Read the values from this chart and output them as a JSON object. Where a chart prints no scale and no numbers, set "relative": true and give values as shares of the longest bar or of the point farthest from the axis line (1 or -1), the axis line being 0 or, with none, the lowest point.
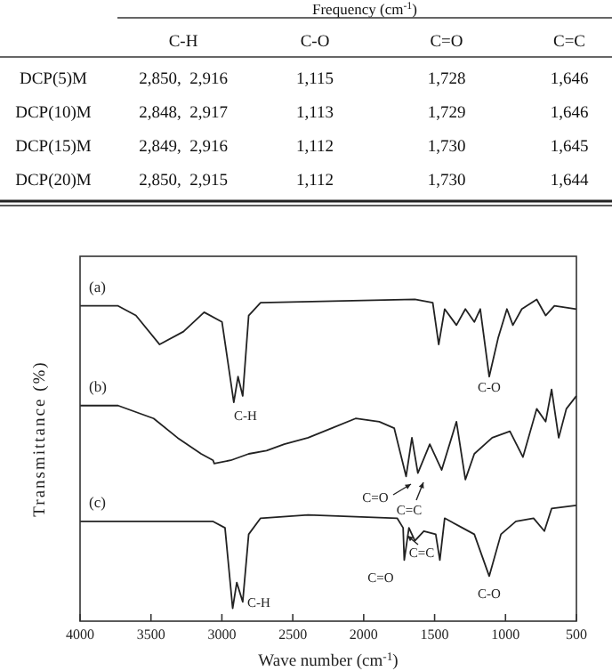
{
  "chart_data": [
    {
      "type": "other",
      "title": "Frequency (cm$^{-1}$)",
      "categories": [
        "C-H",
        "C-O",
        "C=O",
        "C=C"
      ],
      "y_categories": [
        "DCP(5)M",
        "DCP(10)M",
        "DCP(15)M",
        "DCP(20)M"
      ],
      "cell_labels": [
        [
          "2,850,  2,916",
          "1,115",
          "1,728",
          "1,646"
        ],
        [
          "2,848,  2,917",
          "1,113",
          "1,729",
          "1,646"
        ],
        [
          "2,849,  2,916",
          "1,112",
          "1,730",
          "1,645"
        ],
        [
          "2,850,  2,915",
          "1,112",
          "1,730",
          "1,644"
        ]
      ]
    },
    {
      "type": "line",
      "relative": true,
      "xlabel": "Wave number (cm$^{-1}$)",
      "ylabel": "Transmittance (%)",
      "xlim": [
        4000,
        500
      ],
      "xticks": [
        4000,
        3500,
        3000,
        2500,
        2000,
        1500,
        1000,
        500
      ],
      "marker": "none",
      "line_style": "solid",
      "series": [
        {
          "name": "(a)",
          "color": "#222222",
          "x": [
            4000,
            3732,
            3606,
            3439,
            3271,
            3125,
            2999,
            2916,
            2886,
            2853,
            2811,
            2727,
            1639,
            1513,
            1471,
            1429,
            1346,
            1283,
            1220,
            1178,
            1115,
            1052,
            990,
            948,
            885,
            780,
            717,
            655,
            500
          ],
          "values": [
            0.98,
            0.98,
            0.95,
            0.86,
            0.9,
            0.96,
            0.93,
            0.68,
            0.76,
            0.7,
            0.95,
            0.99,
            1.0,
            0.99,
            0.86,
            0.97,
            0.92,
            0.97,
            0.93,
            0.97,
            0.76,
            0.88,
            0.97,
            0.92,
            0.97,
            1.0,
            0.95,
            0.98,
            0.97
          ]
        },
        {
          "name": "(b)",
          "color": "#222222",
          "x": [
            4000,
            3732,
            3481,
            3313,
            3146,
            3062,
            3054,
            2937,
            2811,
            2685,
            2560,
            2392,
            2225,
            2057,
            1890,
            1785,
            1701,
            1660,
            1618,
            1534,
            1450,
            1346,
            1283,
            1220,
            1094,
            969,
            877,
            780,
            717,
            675,
            625,
            571,
            500
          ],
          "values": [
            0.67,
            0.67,
            0.63,
            0.57,
            0.52,
            0.5,
            0.49,
            0.5,
            0.52,
            0.53,
            0.55,
            0.57,
            0.6,
            0.63,
            0.62,
            0.6,
            0.45,
            0.57,
            0.46,
            0.55,
            0.47,
            0.62,
            0.44,
            0.52,
            0.57,
            0.59,
            0.51,
            0.66,
            0.62,
            0.72,
            0.57,
            0.66,
            0.7
          ]
        },
        {
          "name": "(c)",
          "color": "#222222",
          "x": [
            4000,
            3062,
            2978,
            2924,
            2895,
            2853,
            2811,
            2727,
            2392,
            1764,
            1722,
            1714,
            1681,
            1639,
            1576,
            1492,
            1463,
            1429,
            1304,
            1220,
            1115,
            1032,
            927,
            802,
            726,
            675,
            500
          ],
          "values": [
            0.31,
            0.31,
            0.29,
            0.04,
            0.12,
            0.06,
            0.27,
            0.32,
            0.33,
            0.32,
            0.29,
            0.19,
            0.29,
            0.25,
            0.28,
            0.27,
            0.19,
            0.32,
            0.29,
            0.27,
            0.14,
            0.27,
            0.31,
            0.32,
            0.28,
            0.35,
            0.36
          ]
        }
      ],
      "annotations": [
        "C-H",
        "C-O",
        "C=O",
        "C=C",
        "C=O",
        "C=C",
        "C-H",
        "C-O"
      ]
    }
  ]
}
